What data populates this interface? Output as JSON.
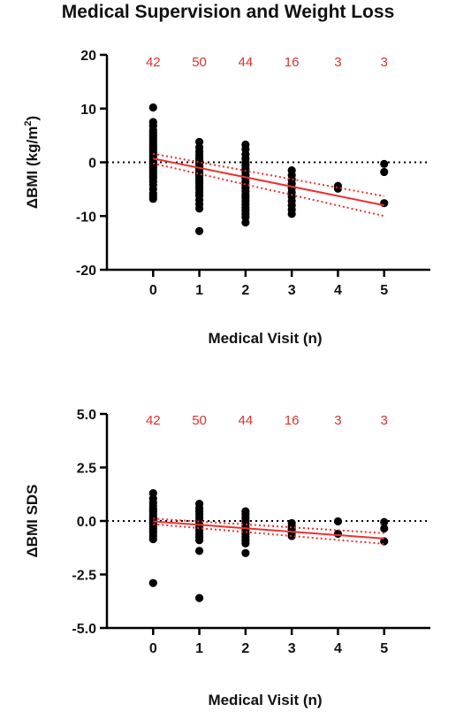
{
  "page_title": "Medical Supervision and Weight Loss",
  "chart_data": [
    {
      "type": "scatter",
      "title": "",
      "xlabel": "Medical Visit (n)",
      "ylabel": "ΔBMI (kg/m²)",
      "ylabel_parts": {
        "pre": "ΔBMI (kg/m",
        "sup": "2",
        "post": ")"
      },
      "xlim": [
        -1,
        6
      ],
      "ylim": [
        -20,
        20
      ],
      "xticks": [
        "0",
        "1",
        "2",
        "3",
        "4",
        "5"
      ],
      "yticks": [
        "20",
        "10",
        "0",
        "-10",
        "-20"
      ],
      "ytick_values": [
        20,
        10,
        0,
        -10,
        -20
      ],
      "group_counts": [
        {
          "x": 0,
          "label": "42"
        },
        {
          "x": 1,
          "label": "50"
        },
        {
          "x": 2,
          "label": "44"
        },
        {
          "x": 3,
          "label": "16"
        },
        {
          "x": 4,
          "label": "3"
        },
        {
          "x": 5,
          "label": "3"
        }
      ],
      "reference_line": 0,
      "fit_line": {
        "x": [
          0,
          5
        ],
        "y": [
          0.7,
          -8.0
        ]
      },
      "ci_lower": {
        "x": [
          0,
          5
        ],
        "y": [
          -0.2,
          -10.0
        ]
      },
      "ci_upper": {
        "x": [
          0,
          5
        ],
        "y": [
          1.6,
          -6.3
        ]
      },
      "points": [
        {
          "x": 0,
          "values": [
            10.2,
            7.5,
            6.8,
            6.0,
            5.5,
            5.0,
            4.6,
            4.2,
            3.8,
            3.4,
            3.0,
            2.6,
            2.2,
            1.8,
            1.4,
            1.0,
            0.6,
            0.2,
            -0.2,
            -0.6,
            -1.0,
            -1.4,
            -1.8,
            -2.2,
            -2.6,
            -3.0,
            -3.6,
            -4.2,
            -5.0,
            -5.8,
            -6.3,
            -6.8
          ]
        },
        {
          "x": 1,
          "values": [
            3.8,
            2.8,
            2.0,
            1.4,
            0.8,
            0.3,
            -0.2,
            -0.7,
            -1.2,
            -1.6,
            -2.0,
            -2.4,
            -2.8,
            -3.2,
            -3.6,
            -4.0,
            -4.5,
            -5.0,
            -5.6,
            -6.2,
            -7.0,
            -7.8,
            -8.6,
            -12.8
          ]
        },
        {
          "x": 2,
          "values": [
            3.3,
            2.4,
            1.5,
            0.7,
            0.0,
            -0.6,
            -1.2,
            -1.8,
            -2.4,
            -3.0,
            -3.6,
            -4.2,
            -4.8,
            -5.4,
            -6.0,
            -6.6,
            -7.2,
            -7.8,
            -8.4,
            -9.0,
            -9.6,
            -10.2,
            -11.2
          ]
        },
        {
          "x": 3,
          "values": [
            -1.5,
            -2.4,
            -3.2,
            -4.0,
            -4.8,
            -5.6,
            -6.4,
            -7.2,
            -8.0,
            -8.8,
            -9.6
          ]
        },
        {
          "x": 4,
          "values": [
            -4.4,
            -4.9
          ]
        },
        {
          "x": 5,
          "values": [
            -0.3,
            -1.8,
            -7.6
          ]
        }
      ]
    },
    {
      "type": "scatter",
      "title": "",
      "xlabel": "Medical Visit (n)",
      "ylabel": "ΔBMI SDS",
      "xlim": [
        -1,
        6
      ],
      "ylim": [
        -5,
        5
      ],
      "xticks": [
        "0",
        "1",
        "2",
        "3",
        "4",
        "5"
      ],
      "yticks": [
        "5.0",
        "2.5",
        "0.0",
        "-2.5",
        "-5.0"
      ],
      "ytick_values": [
        5,
        2.5,
        0,
        -2.5,
        -5
      ],
      "group_counts": [
        {
          "x": 0,
          "label": "42"
        },
        {
          "x": 1,
          "label": "50"
        },
        {
          "x": 2,
          "label": "44"
        },
        {
          "x": 3,
          "label": "16"
        },
        {
          "x": 4,
          "label": "3"
        },
        {
          "x": 5,
          "label": "3"
        }
      ],
      "reference_line": 0,
      "fit_line": {
        "x": [
          0,
          5
        ],
        "y": [
          -0.02,
          -0.82
        ]
      },
      "ci_lower": {
        "x": [
          0,
          5
        ],
        "y": [
          -0.15,
          -1.07
        ]
      },
      "ci_upper": {
        "x": [
          0,
          5
        ],
        "y": [
          0.11,
          -0.57
        ]
      },
      "points": [
        {
          "x": 0,
          "values": [
            1.3,
            1.05,
            0.85,
            0.7,
            0.55,
            0.45,
            0.35,
            0.25,
            0.15,
            0.05,
            -0.05,
            -0.15,
            -0.25,
            -0.35,
            -0.45,
            -0.55,
            -0.7,
            -0.85,
            -2.9
          ]
        },
        {
          "x": 1,
          "values": [
            0.8,
            0.6,
            0.45,
            0.3,
            0.15,
            0.0,
            -0.15,
            -0.3,
            -0.45,
            -0.6,
            -0.75,
            -0.9,
            -1.4,
            -3.6
          ]
        },
        {
          "x": 2,
          "values": [
            0.45,
            0.3,
            0.15,
            0.0,
            -0.15,
            -0.3,
            -0.45,
            -0.6,
            -0.75,
            -0.9,
            -1.05,
            -1.5
          ]
        },
        {
          "x": 3,
          "values": [
            -0.1,
            -0.25,
            -0.4,
            -0.55,
            -0.7
          ]
        },
        {
          "x": 4,
          "values": [
            -0.02,
            -0.6
          ]
        },
        {
          "x": 5,
          "values": [
            -0.05,
            -0.35,
            -0.95
          ]
        }
      ]
    }
  ]
}
